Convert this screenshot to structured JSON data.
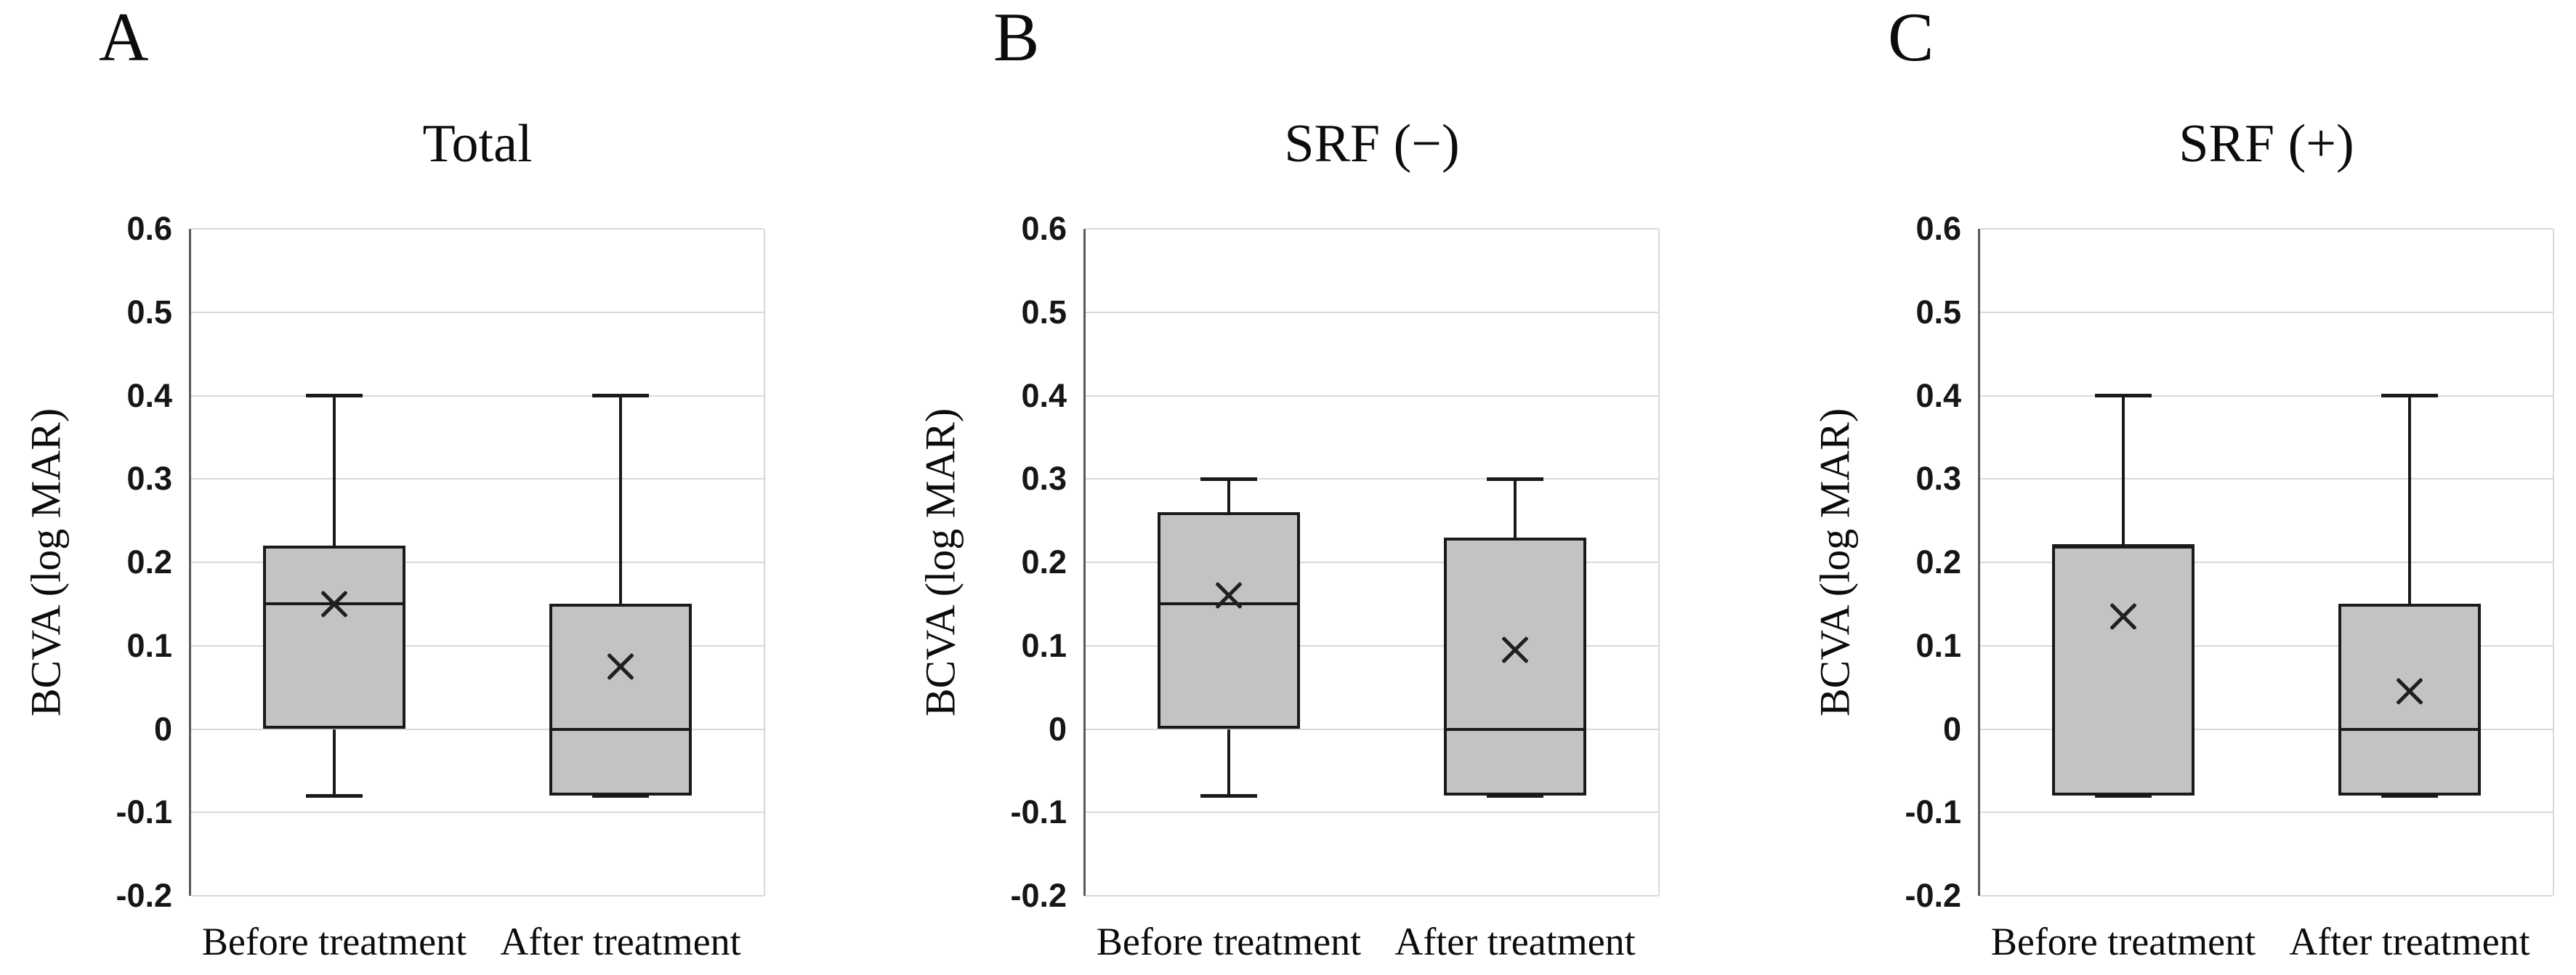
{
  "figure": {
    "background": "#ffffff",
    "colors": {
      "box_fill": "#c3c3c3",
      "box_border": "#1a1a1a",
      "gridline": "#d9d9d9",
      "axis_line": "#595959",
      "text": "#0c0c0c"
    }
  },
  "chart_data": [
    {
      "type": "box",
      "panel_label": "A",
      "title": "Total",
      "ylabel": "BCVA (log MAR)",
      "ylim": [
        -0.2,
        0.6
      ],
      "ytick_step": 0.1,
      "yticks": [
        "0.6",
        "0.5",
        "0.4",
        "0.3",
        "0.2",
        "0.1",
        "0",
        "-0.1",
        "-0.2"
      ],
      "grid": true,
      "legend": "none",
      "categories": [
        "Before treatment",
        "After treatment"
      ],
      "series": [
        {
          "name": "Before treatment",
          "min": -0.08,
          "q1": 0.0,
          "median": 0.15,
          "q3": 0.22,
          "max": 0.4,
          "mean": 0.15
        },
        {
          "name": "After treatment",
          "min": -0.08,
          "q1": -0.08,
          "median": 0.0,
          "q3": 0.15,
          "max": 0.4,
          "mean": 0.075
        }
      ]
    },
    {
      "type": "box",
      "panel_label": "B",
      "title": "SRF (−)",
      "ylabel": "BCVA (log MAR)",
      "ylim": [
        -0.2,
        0.6
      ],
      "ytick_step": 0.1,
      "yticks": [
        "0.6",
        "0.5",
        "0.4",
        "0.3",
        "0.2",
        "0.1",
        "0",
        "-0.1",
        "-0.2"
      ],
      "grid": true,
      "legend": "none",
      "categories": [
        "Before treatment",
        "After treatment"
      ],
      "series": [
        {
          "name": "Before treatment",
          "min": -0.08,
          "q1": 0.0,
          "median": 0.15,
          "q3": 0.26,
          "max": 0.3,
          "mean": 0.16
        },
        {
          "name": "After treatment",
          "min": -0.08,
          "q1": -0.08,
          "median": 0.0,
          "q3": 0.23,
          "max": 0.3,
          "mean": 0.095
        }
      ]
    },
    {
      "type": "box",
      "panel_label": "C",
      "title": "SRF (+)",
      "ylabel": "BCVA (log MAR)",
      "ylim": [
        -0.2,
        0.6
      ],
      "ytick_step": 0.1,
      "yticks": [
        "0.6",
        "0.5",
        "0.4",
        "0.3",
        "0.2",
        "0.1",
        "0",
        "-0.1",
        "-0.2"
      ],
      "grid": true,
      "legend": "none",
      "categories": [
        "Before treatment",
        "After treatment"
      ],
      "series": [
        {
          "name": "Before treatment",
          "min": -0.08,
          "q1": -0.08,
          "median": 0.22,
          "q3": 0.22,
          "max": 0.4,
          "mean": 0.135
        },
        {
          "name": "After treatment",
          "min": -0.08,
          "q1": -0.08,
          "median": 0.0,
          "q3": 0.15,
          "max": 0.4,
          "mean": 0.045
        }
      ]
    }
  ]
}
